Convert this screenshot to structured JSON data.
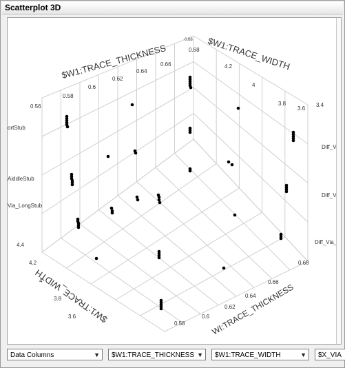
{
  "window": {
    "title": "Scatterplot 3D"
  },
  "chart_data": {
    "type": "scatter",
    "x_axis": {
      "label": "$W1:TRACE_THICKNESS",
      "ticks": [
        "0.56",
        "0.58",
        "0.6",
        "0.62",
        "0.64",
        "0.66",
        "0.68"
      ]
    },
    "y_axis": {
      "label": "$W1:TRACE_WIDTH",
      "ticks": [
        "4.4",
        "4.2",
        "4",
        "3.8",
        "3.6",
        "3.4"
      ]
    },
    "z_axis": {
      "label": "$X_VIA",
      "categories": [
        "Diff_Via_ShortStub",
        "Diff_Via_MiddleStub",
        "Diff_Via_LongStub"
      ],
      "left_tick_labels": [
        "ortStub",
        "AiddleStub",
        "Via_LongStub"
      ],
      "right_tick_labels": [
        "Diff_V",
        "Diff_Via_",
        "Diff_Via_Lor"
      ]
    },
    "bottom_x_label": "WI:TRACE_THICKNESS",
    "bottom_y_label": "$W1:TRACE_WIDTH",
    "bottom_x_ticks": [
      "0.58",
      "0.6",
      "0.62",
      "0.64",
      "0.66",
      "0.68"
    ],
    "bottom_y_ticks": [
      "4.4",
      "4.2",
      "4",
      "3.8",
      "3.6"
    ],
    "top_corner_label": "0.68",
    "grid": true,
    "points_color": "#000000"
  },
  "controls": {
    "columns_select": "Data Columns",
    "x_select": "$W1:TRACE_THICKNESS",
    "y_select": "$W1:TRACE_WIDTH",
    "z_select": "$X_VIA"
  }
}
